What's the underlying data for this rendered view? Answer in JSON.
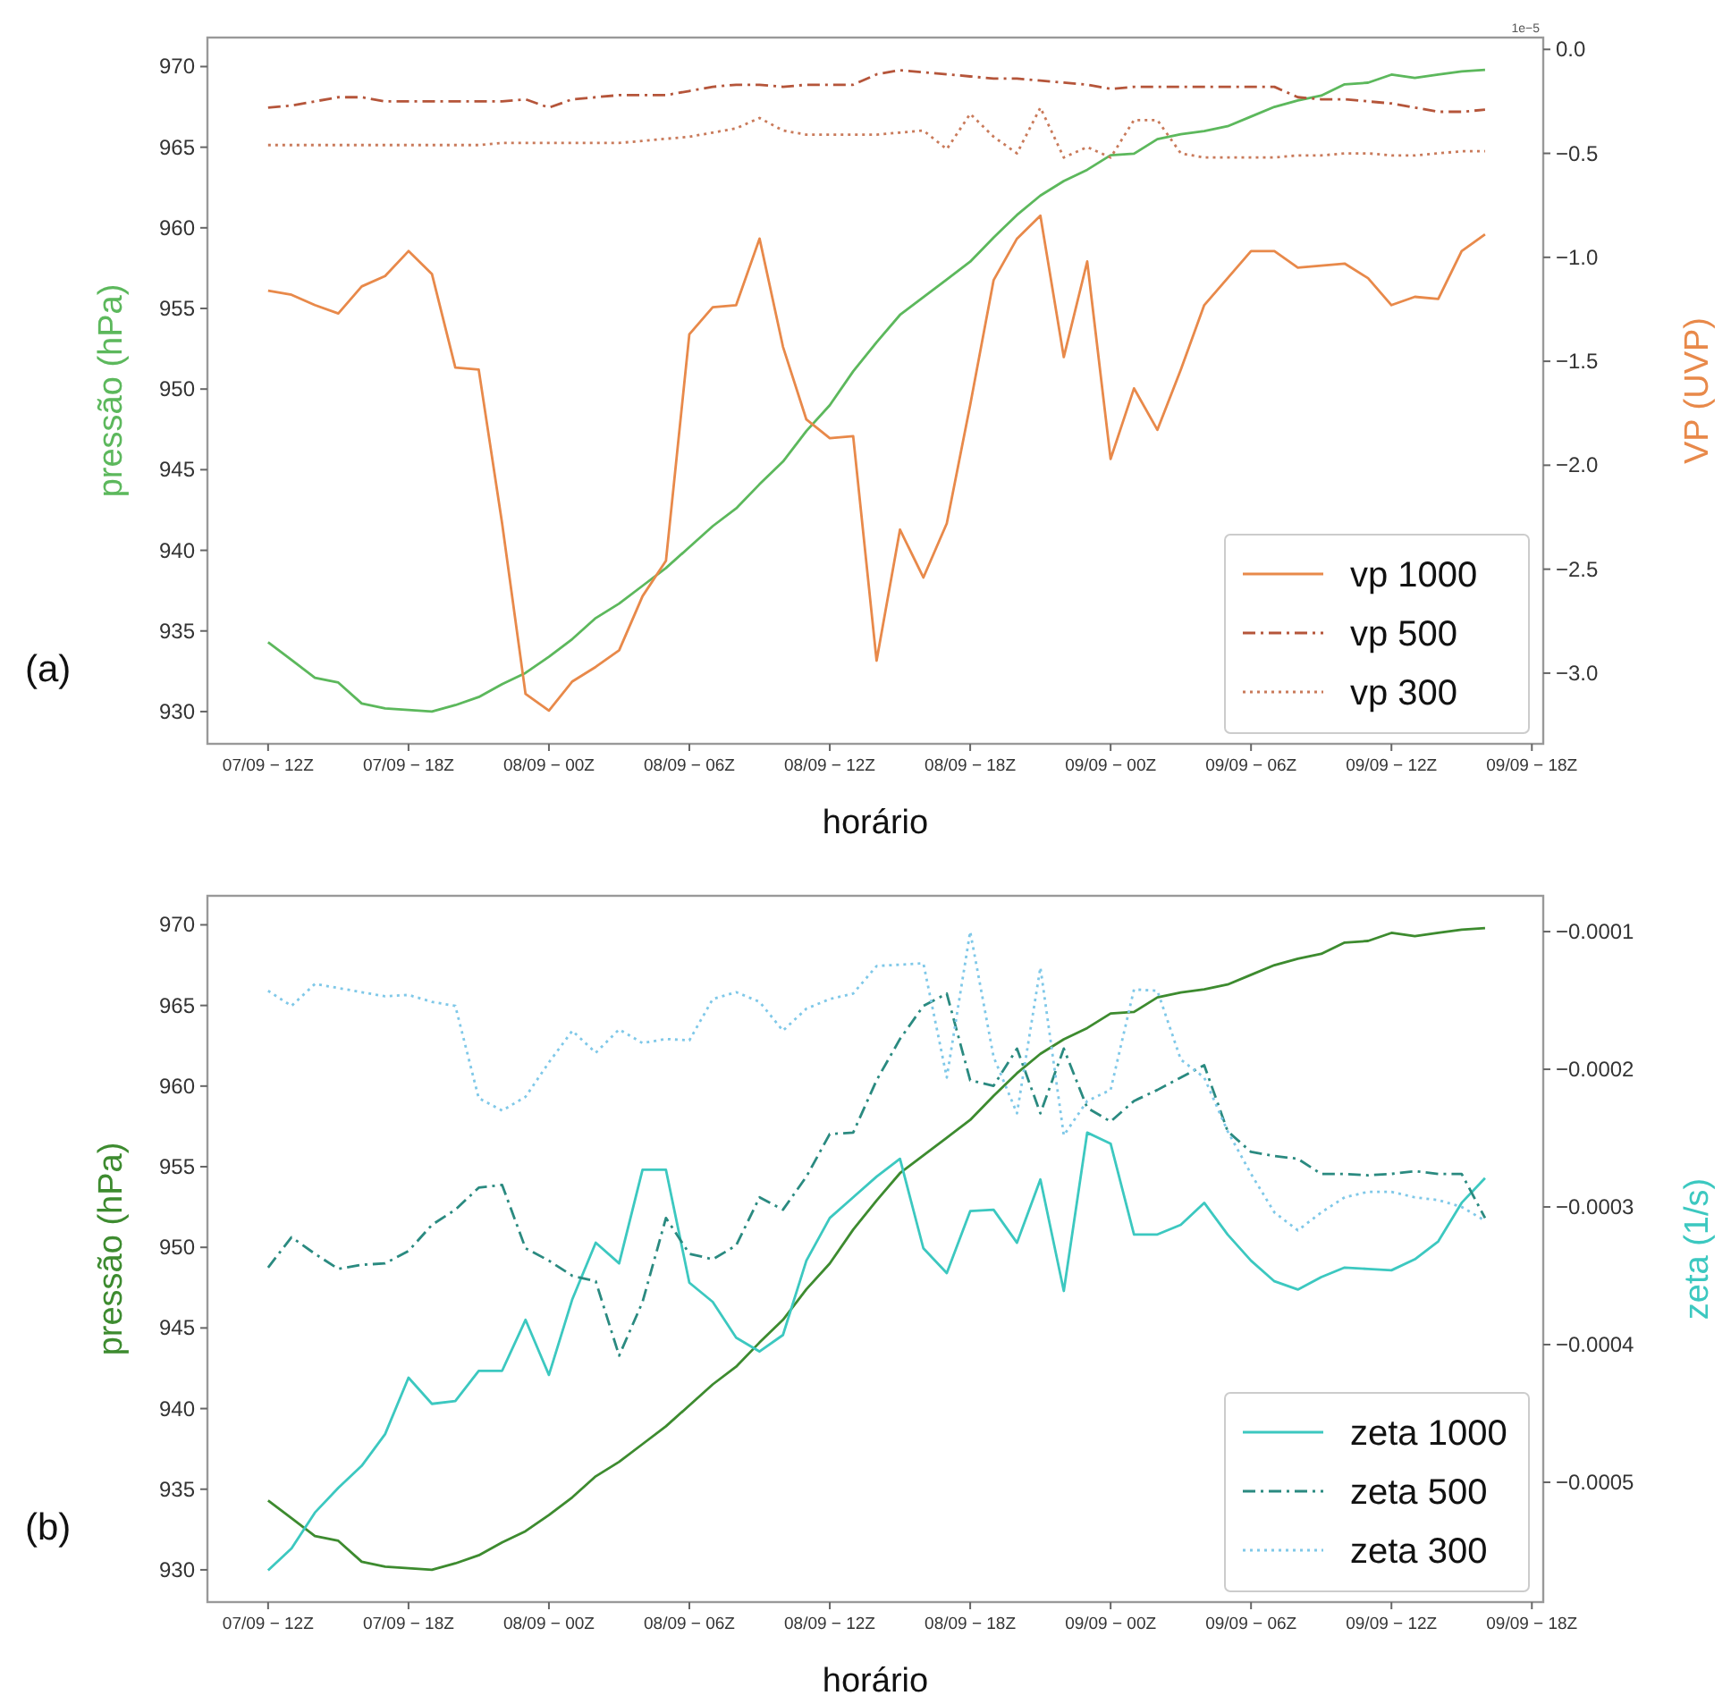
{
  "chart_data": [
    {
      "type": "line",
      "xlabel": "horário",
      "ylabel": "pressão (hPa)",
      "y2label": "VP (UVP)",
      "annotations": [
        "(a)",
        "1e−5"
      ],
      "categories": [
        "07/09 − 12Z",
        null,
        null,
        null,
        null,
        null,
        "07/09 − 18Z",
        null,
        null,
        null,
        null,
        null,
        "08/09 − 00Z",
        null,
        null,
        null,
        null,
        null,
        "08/09 − 06Z",
        null,
        null,
        null,
        null,
        null,
        "08/09 − 12Z",
        null,
        null,
        null,
        null,
        null,
        "08/09 − 18Z",
        null,
        null,
        null,
        null,
        null,
        "09/09 − 00Z",
        null,
        null,
        null,
        null,
        null,
        "09/09 − 06Z",
        null,
        null,
        null,
        null,
        null,
        "09/09 − 12Z",
        null,
        null,
        null,
        null,
        null,
        "09/09 − 18Z"
      ],
      "ylim": [
        928,
        971.8
      ],
      "yticks": [
        930,
        935,
        940,
        945,
        950,
        955,
        960,
        965,
        970
      ],
      "y2lim": [
        -3.34,
        0.057
      ],
      "y2ticks": [
        {
          "value": 0,
          "label": "0.0"
        },
        {
          "value": -0.5,
          "label": "−0.5"
        },
        {
          "value": -1,
          "label": "−1.0"
        },
        {
          "value": -1.5,
          "label": "−1.5"
        },
        {
          "value": -2,
          "label": "−2.0"
        },
        {
          "value": -2.5,
          "label": "−2.5"
        },
        {
          "value": -3,
          "label": "−3.0"
        }
      ],
      "legend": "bottom right",
      "grid": false,
      "series": [
        {
          "color": "#5cb85c",
          "line_style": "solid",
          "values": [
            934.3,
            933.2,
            932.1,
            931.8,
            930.5,
            930.2,
            930.1,
            930.0,
            930.4,
            930.9,
            931.7,
            932.4,
            933.4,
            934.5,
            935.8,
            936.7,
            937.8,
            938.9,
            940.2,
            941.5,
            942.6,
            944.1,
            945.5,
            947.4,
            949.0,
            951.1,
            952.9,
            954.6,
            955.7,
            956.8,
            957.9,
            959.4,
            960.8,
            962.0,
            962.9,
            963.6,
            964.5,
            964.6,
            965.5,
            965.8,
            966.0,
            966.3,
            966.9,
            967.5,
            967.9,
            968.2,
            968.9,
            969.0,
            969.5,
            969.3,
            969.5,
            969.7,
            969.8,
            null,
            null
          ]
        },
        {
          "name": "vp 1000",
          "color": "#e8894a",
          "line_style": "solid",
          "axis": "y2",
          "values": [
            -1.16,
            -1.18,
            -1.23,
            -1.27,
            -1.14,
            -1.09,
            -0.97,
            -1.08,
            -1.53,
            -1.54,
            -2.28,
            -3.1,
            -3.18,
            -3.04,
            -2.97,
            -2.89,
            -2.63,
            -2.46,
            -1.37,
            -1.24,
            -1.23,
            -0.91,
            -1.43,
            -1.78,
            -1.87,
            -1.86,
            -2.94,
            -2.31,
            -2.54,
            -2.28,
            -1.71,
            -1.11,
            -0.91,
            -0.8,
            -1.48,
            -1.02,
            -1.97,
            -1.63,
            -1.83,
            -1.54,
            -1.23,
            -1.1,
            -0.97,
            -0.97,
            -1.05,
            -1.04,
            -1.03,
            -1.1,
            -1.23,
            -1.19,
            -1.2,
            -0.97,
            -0.89,
            null,
            null
          ]
        },
        {
          "name": "vp 500",
          "color": "#b5553a",
          "line_style": "dashdot",
          "axis": "y2",
          "values": [
            -0.28,
            -0.27,
            -0.25,
            -0.23,
            -0.23,
            -0.25,
            -0.25,
            -0.25,
            -0.25,
            -0.25,
            -0.25,
            -0.24,
            -0.28,
            -0.24,
            -0.23,
            -0.22,
            -0.22,
            -0.22,
            -0.2,
            -0.18,
            -0.17,
            -0.17,
            -0.18,
            -0.17,
            -0.17,
            -0.17,
            -0.12,
            -0.1,
            -0.11,
            -0.12,
            -0.13,
            -0.14,
            -0.14,
            -0.15,
            -0.16,
            -0.17,
            -0.19,
            -0.18,
            -0.18,
            -0.18,
            -0.18,
            -0.18,
            -0.18,
            -0.18,
            -0.23,
            -0.24,
            -0.24,
            -0.25,
            -0.26,
            -0.28,
            -0.3,
            -0.3,
            -0.29,
            null,
            null
          ]
        },
        {
          "name": "vp 300",
          "color": "#c97a5a",
          "line_style": "dotted",
          "axis": "y2",
          "values": [
            -0.46,
            -0.46,
            -0.46,
            -0.46,
            -0.46,
            -0.46,
            -0.46,
            -0.46,
            -0.46,
            -0.46,
            -0.45,
            -0.45,
            -0.45,
            -0.45,
            -0.45,
            -0.45,
            -0.44,
            -0.43,
            -0.42,
            -0.4,
            -0.38,
            -0.33,
            -0.39,
            -0.41,
            -0.41,
            -0.41,
            -0.41,
            -0.4,
            -0.39,
            -0.48,
            -0.31,
            -0.42,
            -0.5,
            -0.28,
            -0.52,
            -0.47,
            -0.52,
            -0.34,
            -0.34,
            -0.5,
            -0.52,
            -0.52,
            -0.52,
            -0.52,
            -0.51,
            -0.51,
            -0.5,
            -0.5,
            -0.51,
            -0.51,
            -0.5,
            -0.49,
            -0.49,
            null,
            null
          ]
        }
      ]
    },
    {
      "type": "line",
      "xlabel": "horário",
      "ylabel": "pressão (hPa)",
      "y2label": "zeta  (1/s)",
      "annotations": [
        "(b)"
      ],
      "categories": [
        "07/09 − 12Z",
        null,
        null,
        null,
        null,
        null,
        "07/09 − 18Z",
        null,
        null,
        null,
        null,
        null,
        "08/09 − 00Z",
        null,
        null,
        null,
        null,
        null,
        "08/09 − 06Z",
        null,
        null,
        null,
        null,
        null,
        "08/09 − 12Z",
        null,
        null,
        null,
        null,
        null,
        "08/09 − 18Z",
        null,
        null,
        null,
        null,
        null,
        "09/09 − 00Z",
        null,
        null,
        null,
        null,
        null,
        "09/09 − 06Z",
        null,
        null,
        null,
        null,
        null,
        "09/09 − 12Z",
        null,
        null,
        null,
        null,
        null,
        "09/09 − 18Z"
      ],
      "ylim": [
        928,
        971.8
      ],
      "yticks": [
        930,
        935,
        940,
        945,
        950,
        955,
        960,
        965,
        970
      ],
      "y2lim": [
        -0.000587,
        -7.4e-05
      ],
      "y2ticks": [
        {
          "value": -0.0001,
          "label": "−0.0001"
        },
        {
          "value": -0.0002,
          "label": "−0.0002"
        },
        {
          "value": -0.0003,
          "label": "−0.0003"
        },
        {
          "value": -0.0004,
          "label": "−0.0004"
        },
        {
          "value": -0.0005,
          "label": "−0.0005"
        }
      ],
      "legend": "bottom right",
      "grid": false,
      "series": [
        {
          "color": "#3d8b2f",
          "line_style": "solid",
          "values": [
            934.3,
            933.2,
            932.1,
            931.8,
            930.5,
            930.2,
            930.1,
            930.0,
            930.4,
            930.9,
            931.7,
            932.4,
            933.4,
            934.5,
            935.8,
            936.7,
            937.8,
            938.9,
            940.2,
            941.5,
            942.6,
            944.1,
            945.5,
            947.4,
            949.0,
            951.1,
            952.9,
            954.6,
            955.7,
            956.8,
            957.9,
            959.4,
            960.8,
            962.0,
            962.9,
            963.6,
            964.5,
            964.6,
            965.5,
            965.8,
            966.0,
            966.3,
            966.9,
            967.5,
            967.9,
            968.2,
            968.9,
            969.0,
            969.5,
            969.3,
            969.5,
            969.7,
            969.8,
            null,
            null
          ]
        },
        {
          "name": "zeta 1000",
          "color": "#3cc8c0",
          "line_style": "solid",
          "axis": "y2",
          "values": [
            -0.000564,
            -0.000548,
            -0.000522,
            -0.000504,
            -0.000488,
            -0.000465,
            -0.000424,
            -0.000443,
            -0.000441,
            -0.000419,
            -0.000419,
            -0.000382,
            -0.000422,
            -0.000367,
            -0.000326,
            -0.000341,
            -0.000273,
            -0.000273,
            -0.000355,
            -0.000369,
            -0.000395,
            -0.000405,
            -0.000393,
            -0.000339,
            -0.000308,
            -0.000293,
            -0.000278,
            -0.000265,
            -0.00033,
            -0.000348,
            -0.000303,
            -0.000302,
            -0.000326,
            -0.00028,
            -0.000361,
            -0.000246,
            -0.000254,
            -0.00032,
            -0.00032,
            -0.000313,
            -0.000297,
            -0.00032,
            -0.000339,
            -0.000354,
            -0.00036,
            -0.000351,
            -0.000344,
            -0.000345,
            -0.000346,
            -0.000338,
            -0.000325,
            -0.000297,
            -0.000279,
            null,
            null
          ]
        },
        {
          "name": "zeta 500",
          "color": "#2a8a80",
          "line_style": "dashdot",
          "axis": "y2",
          "values": [
            -0.000344,
            -0.000322,
            -0.000334,
            -0.000345,
            -0.000342,
            -0.000341,
            -0.000332,
            -0.000313,
            -0.000302,
            -0.000286,
            -0.000284,
            -0.00033,
            -0.000339,
            -0.00035,
            -0.000354,
            -0.000408,
            -0.000369,
            -0.000308,
            -0.000334,
            -0.000338,
            -0.000328,
            -0.000293,
            -0.000302,
            -0.000278,
            -0.000247,
            -0.000246,
            -0.000208,
            -0.000178,
            -0.000154,
            -0.000145,
            -0.000208,
            -0.000212,
            -0.000185,
            -0.000232,
            -0.000185,
            -0.000228,
            -0.000238,
            -0.000223,
            -0.000215,
            -0.000206,
            -0.000197,
            -0.000245,
            -0.00026,
            -0.000263,
            -0.000265,
            -0.000276,
            -0.000276,
            -0.000277,
            -0.000276,
            -0.000274,
            -0.000276,
            -0.000276,
            -0.000308,
            null,
            null
          ]
        },
        {
          "name": "zeta 300",
          "color": "#7fc8e8",
          "line_style": "dotted",
          "axis": "y2",
          "values": [
            -0.000143,
            -0.000154,
            -0.000138,
            -0.000141,
            -0.000144,
            -0.000147,
            -0.000146,
            -0.000151,
            -0.000154,
            -0.000221,
            -0.00023,
            -0.00022,
            -0.000195,
            -0.000172,
            -0.000188,
            -0.000171,
            -0.000181,
            -0.000178,
            -0.000179,
            -0.000149,
            -0.000144,
            -0.000151,
            -0.000172,
            -0.000156,
            -0.000149,
            -0.000145,
            -0.000125,
            -0.000124,
            -0.000123,
            -0.000206,
            -0.0001,
            -0.000191,
            -0.000232,
            -0.000126,
            -0.000248,
            -0.000223,
            -0.000215,
            -0.000142,
            -0.000143,
            -0.000193,
            -0.000206,
            -0.000245,
            -0.000276,
            -0.000304,
            -0.000317,
            -0.000304,
            -0.000293,
            -0.000289,
            -0.000289,
            -0.000293,
            -0.000295,
            -0.0003,
            -0.00031,
            null,
            null
          ]
        }
      ]
    }
  ]
}
